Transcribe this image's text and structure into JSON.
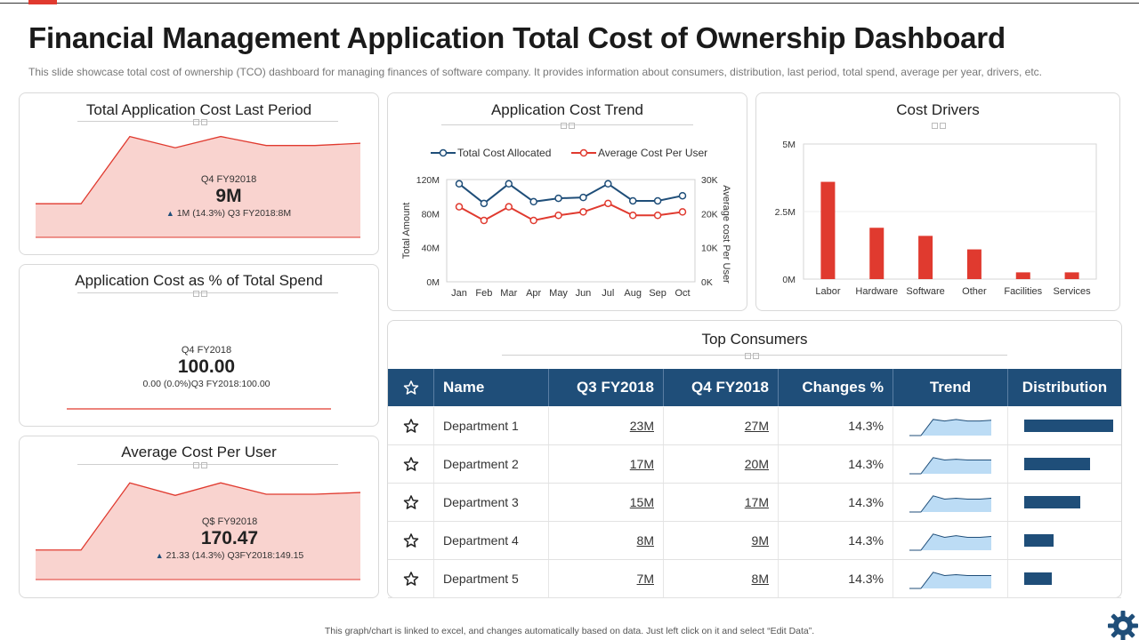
{
  "title": "Financial Management Application Total Cost of Ownership Dashboard",
  "subtitle": "This slide showcase total cost of ownership (TCO) dashboard for managing finances of software company. It provides information about consumers, distribution, last period, total spend, average per year,  drivers, etc.",
  "footer": "This graph/chart is linked to excel, and changes automatically based on data. Just left click on it and select “Edit Data”.",
  "colors": {
    "accent": "#e03a2f",
    "navy": "#1f4e79",
    "pink_fill": "#f9d3cf",
    "sparkline_fill": "#bcdcf5"
  },
  "cards": {
    "last_period": {
      "title": "Total Application Cost  Last Period",
      "period": "Q4 FY92018",
      "value": "9M",
      "arrow": "▲",
      "change": "1M  (14.3%) Q3 FY2018:8M"
    },
    "pct_spend": {
      "title": "Application Cost  as % of Total Spend",
      "period": "Q4 FY2018",
      "value": "100.00",
      "change": "0.00  (0.0%)Q3 FY2018:100.00"
    },
    "avg_user": {
      "title": "Average Cost  Per User",
      "period": "Q$ FY92018",
      "value": "170.47",
      "arrow": "▲",
      "change": "21.33  (14.3%) Q3FY2018:149.15"
    },
    "trend": {
      "title": "Application Cost Trend"
    },
    "drivers": {
      "title": "Cost Drivers"
    },
    "consumers": {
      "title": "Top Consumers"
    }
  },
  "chart_data": [
    {
      "id": "last_period_area",
      "type": "area",
      "title": "Total Application Cost  Last Period",
      "values": [
        3,
        3,
        9,
        8,
        9,
        8.2,
        8.2,
        8.4
      ],
      "ylim": [
        0,
        10
      ]
    },
    {
      "id": "pct_spend_line",
      "type": "line",
      "title": "Application Cost  as % of Total Spend",
      "values": [
        100,
        100,
        100,
        100,
        100
      ],
      "ylim": [
        0,
        100
      ]
    },
    {
      "id": "avg_user_area",
      "type": "area",
      "title": "Average Cost  Per User",
      "values": [
        52,
        52,
        170,
        148,
        170,
        150,
        150,
        153
      ],
      "ylim": [
        0,
        200
      ]
    },
    {
      "id": "app_cost_trend",
      "type": "line",
      "title": "Application Cost Trend",
      "categories": [
        "Jan",
        "Feb",
        "Mar",
        "Apr",
        "May",
        "Jun",
        "Jul",
        "Aug",
        "Sep",
        "Oct"
      ],
      "series": [
        {
          "name": "Total Cost Allocated",
          "axis": "left",
          "color": "#1f4e79",
          "values": [
            115,
            92,
            115,
            94,
            98,
            99,
            115,
            95,
            95,
            101
          ]
        },
        {
          "name": "Average Cost Per User",
          "axis": "right",
          "color": "#e03a2f",
          "values": [
            22,
            18,
            22,
            18,
            19.5,
            20.5,
            23,
            19.5,
            19.5,
            20.5
          ]
        }
      ],
      "ylabel": "Total Amount",
      "y2label": "Average cost Per User",
      "yticks": [
        "0M",
        "40M",
        "80M",
        "120M"
      ],
      "y2ticks": [
        "0K",
        "10K",
        "20K",
        "30K"
      ],
      "ylim": [
        0,
        120
      ],
      "y2lim": [
        0,
        30
      ],
      "legend": "top"
    },
    {
      "id": "cost_drivers",
      "type": "bar",
      "title": "Cost Drivers",
      "categories": [
        "Labor",
        "Hardware",
        "Software",
        "Other",
        "Facilities",
        "Services"
      ],
      "values": [
        3.6,
        1.9,
        1.6,
        1.1,
        0.25,
        0.25
      ],
      "yticks": [
        "0M",
        "2.5M",
        "5M"
      ],
      "ylim": [
        0,
        5
      ],
      "color": "#e03a2f"
    }
  ],
  "table": {
    "headers": [
      "Name",
      "Q3 FY2018",
      "Q4 FY2018",
      "Changes %",
      "Trend",
      "Distribution"
    ],
    "rows": [
      {
        "name": "Department  1",
        "q3": "23M",
        "q4": "27M",
        "change": "14.3%",
        "dist": 1.0,
        "trend": [
          1,
          1,
          3,
          2.8,
          3,
          2.8,
          2.8,
          2.9
        ]
      },
      {
        "name": "Department  2",
        "q3": "17M",
        "q4": "20M",
        "change": "14.3%",
        "dist": 0.74,
        "trend": [
          1,
          1,
          3,
          2.7,
          2.8,
          2.7,
          2.7,
          2.7
        ]
      },
      {
        "name": "Department  3",
        "q3": "15M",
        "q4": "17M",
        "change": "14.3%",
        "dist": 0.63,
        "trend": [
          1,
          1,
          3,
          2.6,
          2.7,
          2.6,
          2.6,
          2.7
        ]
      },
      {
        "name": "Department  4",
        "q3": "8M",
        "q4": "9M",
        "change": "14.3%",
        "dist": 0.33,
        "trend": [
          1,
          1,
          3,
          2.6,
          2.8,
          2.6,
          2.6,
          2.7
        ]
      },
      {
        "name": "Department  5",
        "q3": "7M",
        "q4": "8M",
        "change": "14.3%",
        "dist": 0.31,
        "trend": [
          1,
          1,
          3,
          2.6,
          2.7,
          2.6,
          2.6,
          2.6
        ]
      }
    ]
  }
}
